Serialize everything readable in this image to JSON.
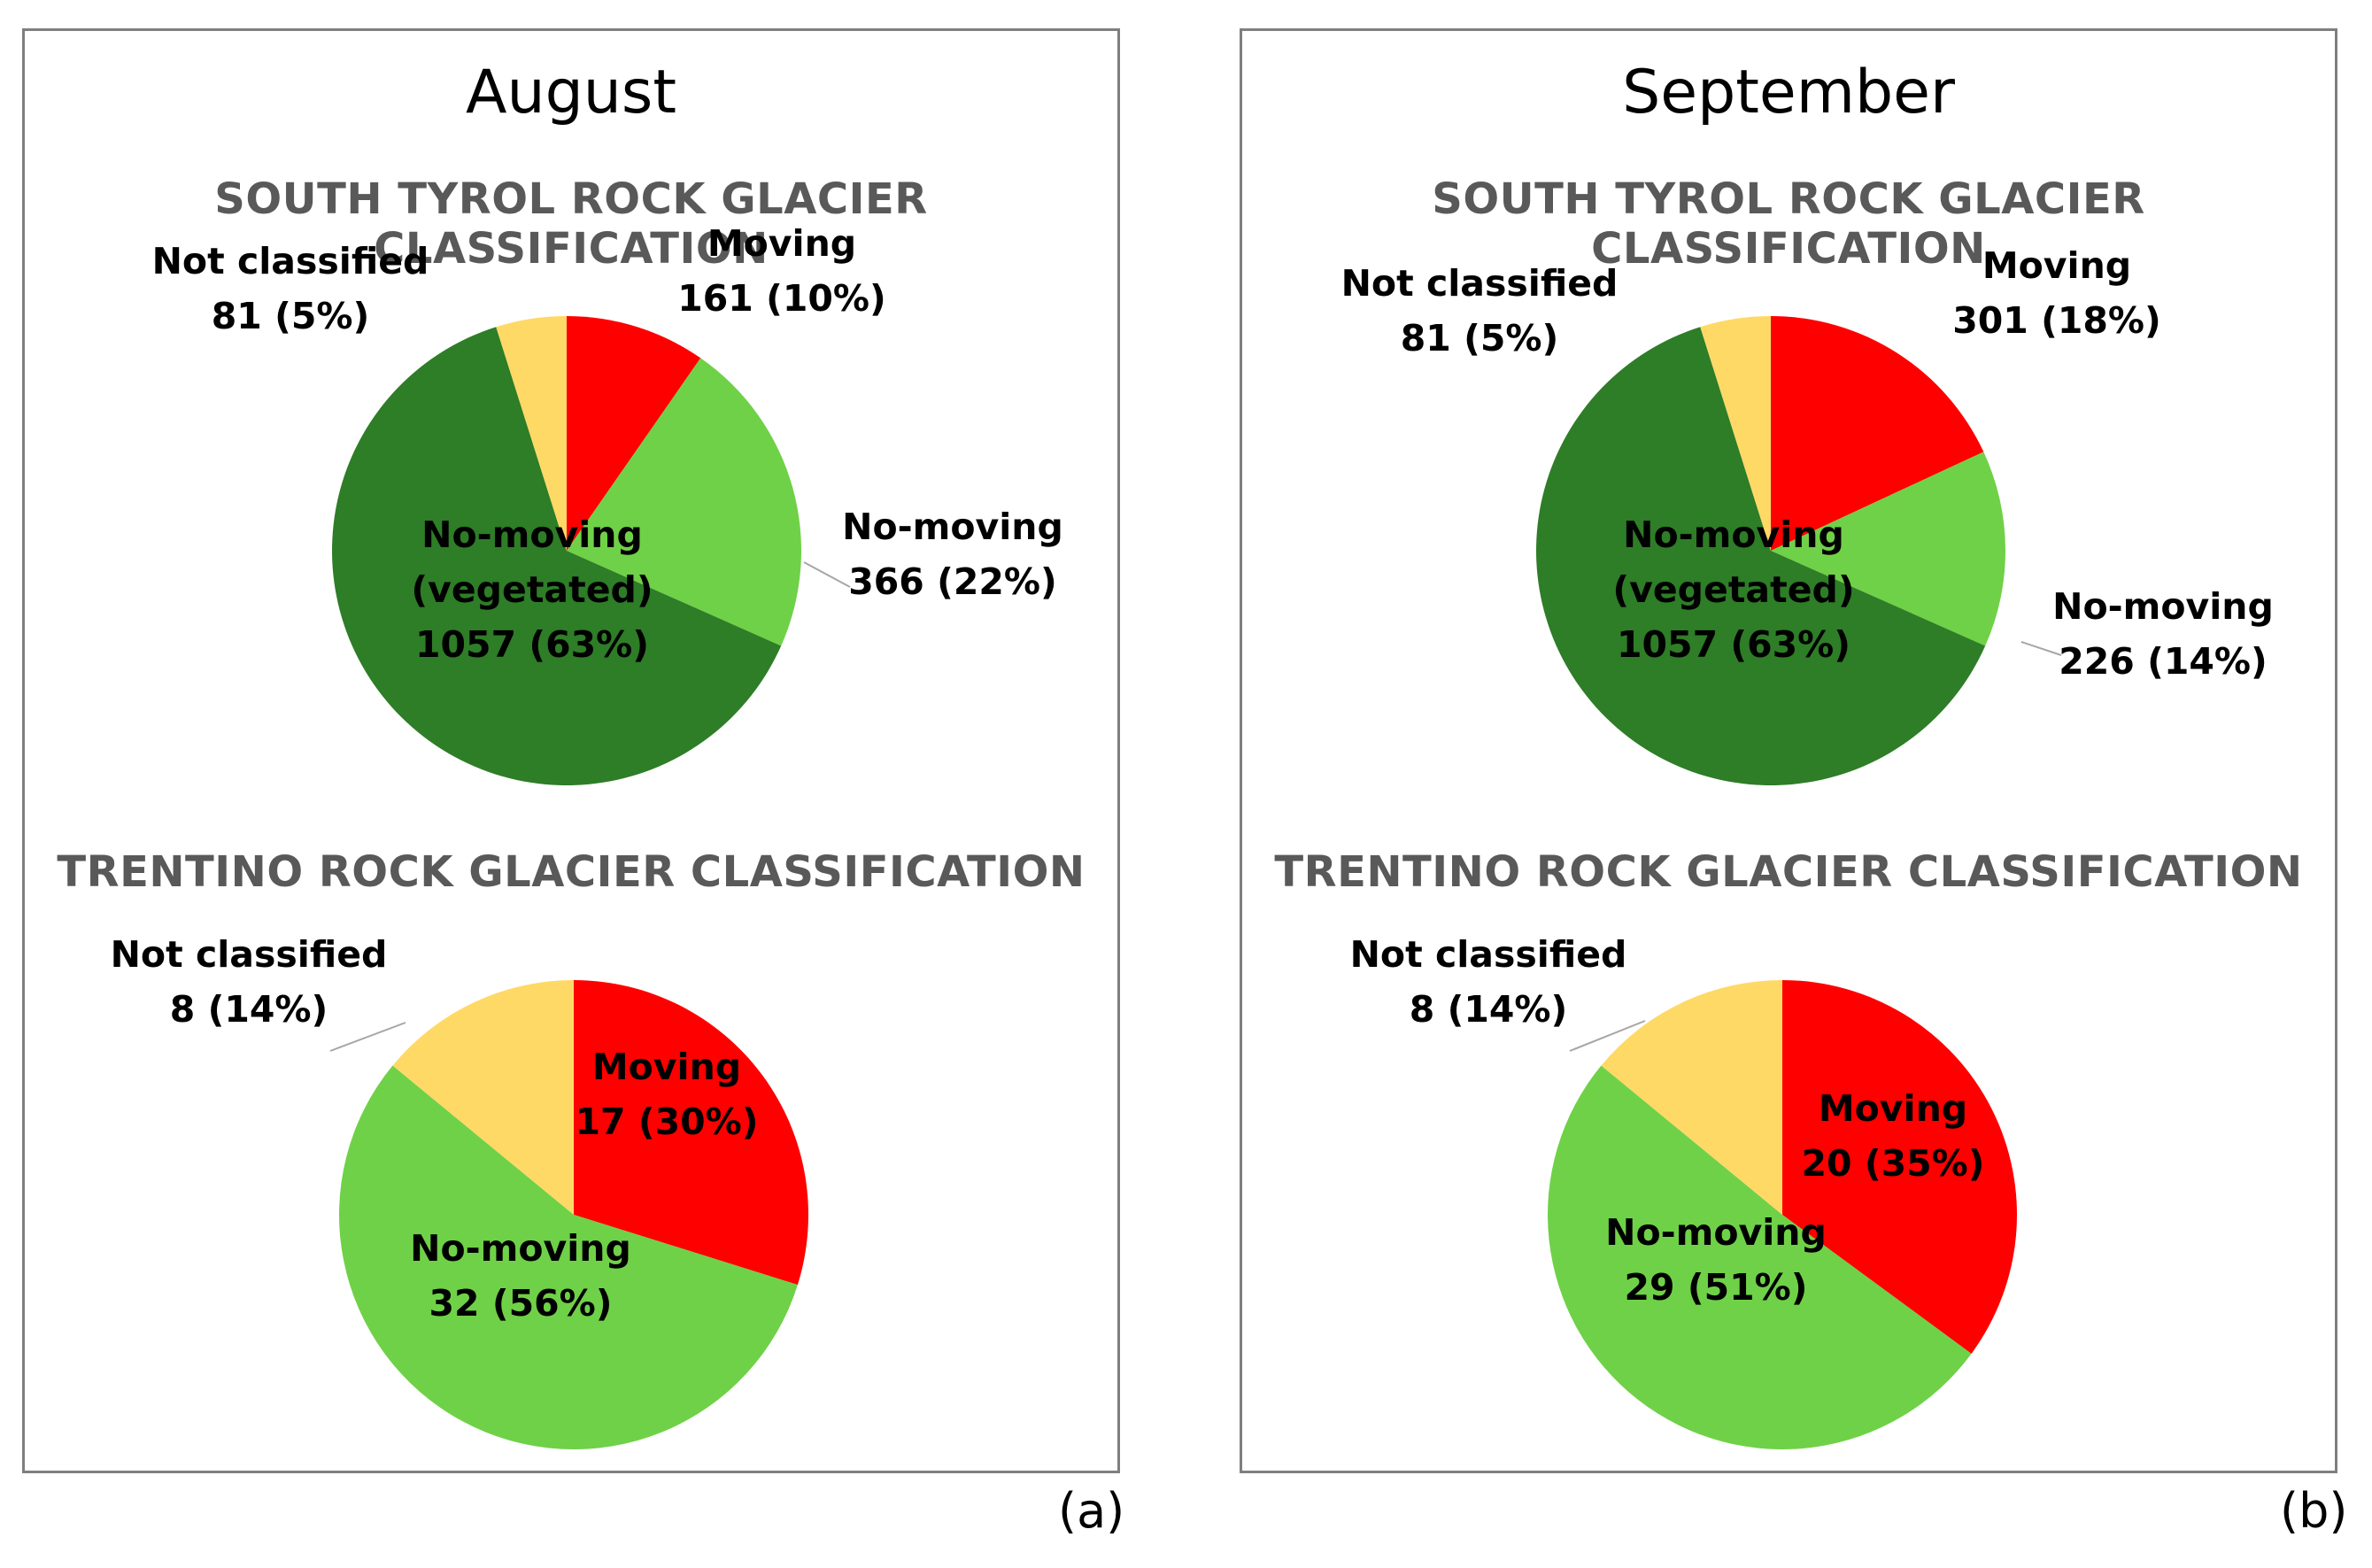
{
  "panels": [
    {
      "title": "August",
      "panel_label": "(a)",
      "charts": [
        {
          "title": "SOUTH TYROL ROCK GLACIER CLASSIFICATION"
        },
        {
          "title": "TRENTINO  ROCK GLACIER CLASSIFICATION"
        }
      ]
    },
    {
      "title": "September",
      "panel_label": "(b)",
      "charts": [
        {
          "title": "SOUTH TYROL ROCK GLACIER CLASSIFICATION"
        },
        {
          "title": "TRENTINO  ROCK GLACIER CLASSIFICATION"
        }
      ]
    }
  ],
  "colors": {
    "moving": "#ff0000",
    "no_moving": "#6fd147",
    "no_moving_vegetated": "#2e7d27",
    "not_classified": "#ffd966",
    "frame": "#7f7f7f",
    "chart_title": "#595959"
  },
  "chart_data": [
    {
      "type": "pie",
      "panel": "August",
      "title": "SOUTH TYROL ROCK GLACIER CLASSIFICATION",
      "slices": [
        {
          "category": "Moving",
          "value": 161,
          "label": [
            "Moving",
            "161 (10%)"
          ]
        },
        {
          "category": "No-moving",
          "value": 366,
          "label": [
            "No-moving",
            "366 (22%)"
          ]
        },
        {
          "category": "No-moving (vegetated)",
          "value": 1057,
          "label": [
            "No-moving",
            "(vegetated)",
            "1057 (63%)"
          ]
        },
        {
          "category": "Not classified",
          "value": 81,
          "label": [
            "Not classified",
            "81 (5%)"
          ]
        }
      ]
    },
    {
      "type": "pie",
      "panel": "August",
      "title": "TRENTINO  ROCK GLACIER CLASSIFICATION",
      "slices": [
        {
          "category": "Moving",
          "value": 17,
          "label": [
            "Moving",
            "17 (30%)"
          ]
        },
        {
          "category": "No-moving",
          "value": 32,
          "label": [
            "No-moving",
            "32 (56%)"
          ]
        },
        {
          "category": "Not classified",
          "value": 8,
          "label": [
            "Not classified",
            "8 (14%)"
          ]
        }
      ]
    },
    {
      "type": "pie",
      "panel": "September",
      "title": "SOUTH TYROL ROCK GLACIER CLASSIFICATION",
      "slices": [
        {
          "category": "Moving",
          "value": 301,
          "label": [
            "Moving",
            "301 (18%)"
          ]
        },
        {
          "category": "No-moving",
          "value": 226,
          "label": [
            "No-moving",
            "226 (14%)"
          ]
        },
        {
          "category": "No-moving (vegetated)",
          "value": 1057,
          "label": [
            "No-moving",
            "(vegetated)",
            "1057 (63%)"
          ]
        },
        {
          "category": "Not classified",
          "value": 81,
          "label": [
            "Not classified",
            "81 (5%)"
          ]
        }
      ]
    },
    {
      "type": "pie",
      "panel": "September",
      "title": "TRENTINO  ROCK GLACIER CLASSIFICATION",
      "slices": [
        {
          "category": "Moving",
          "value": 20,
          "label": [
            "Moving",
            "20 (35%)"
          ]
        },
        {
          "category": "No-moving",
          "value": 29,
          "label": [
            "No-moving",
            "29 (51%)"
          ]
        },
        {
          "category": "Not classified",
          "value": 8,
          "label": [
            "Not classified",
            "8 (14%)"
          ]
        }
      ]
    }
  ]
}
